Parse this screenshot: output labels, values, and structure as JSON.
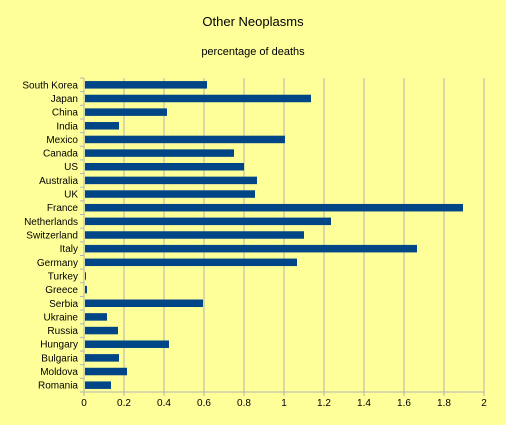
{
  "chart_data": {
    "type": "bar",
    "orientation": "horizontal",
    "title": "Other Neoplasms",
    "subtitle": "percentage of deaths",
    "categories": [
      "South Korea",
      "Japan",
      "China",
      "India",
      "Mexico",
      "Canada",
      "US",
      "Australia",
      "UK",
      "France",
      "Netherlands",
      "Switzerland",
      "Italy",
      "Germany",
      "Turkey",
      "Greece",
      "Serbia",
      "Ukraine",
      "Russia",
      "Hungary",
      "Bulgaria",
      "Moldova",
      "Romania"
    ],
    "values": [
      0.61,
      1.13,
      0.41,
      0.17,
      1.0,
      0.745,
      0.795,
      0.86,
      0.85,
      1.89,
      1.23,
      1.095,
      1.66,
      1.06,
      0.005,
      0.01,
      0.59,
      0.11,
      0.165,
      0.42,
      0.17,
      0.21,
      0.13
    ],
    "xlim": [
      0,
      2
    ],
    "xticks": [
      "0",
      "0.2",
      "0.4",
      "0.6",
      "0.8",
      "1",
      "1.2",
      "1.4",
      "1.6",
      "1.8",
      "2"
    ],
    "grid": true,
    "colors": {
      "bar": "#004586",
      "grid": "#b3b3b3",
      "axis": "#b3b3b3",
      "background": "#ffff99"
    }
  }
}
